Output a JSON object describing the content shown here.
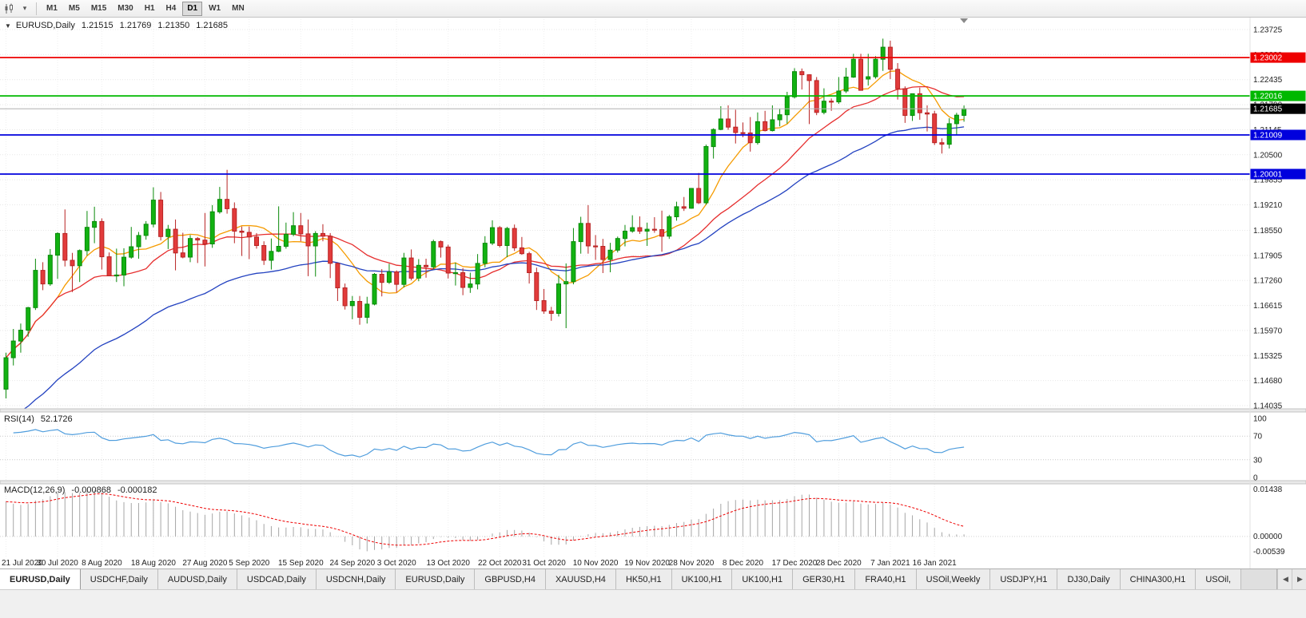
{
  "toolbar": {
    "timeframes": [
      {
        "label": "M1",
        "active": false
      },
      {
        "label": "M5",
        "active": false
      },
      {
        "label": "M15",
        "active": false
      },
      {
        "label": "M30",
        "active": false
      },
      {
        "label": "H1",
        "active": false
      },
      {
        "label": "H4",
        "active": false
      },
      {
        "label": "D1",
        "active": true
      },
      {
        "label": "W1",
        "active": false
      },
      {
        "label": "MN",
        "active": false
      }
    ],
    "icons": {
      "chart_type": "candlestick-chart",
      "dropdown": "▾"
    }
  },
  "chart_data": {
    "type": "candlestick",
    "symbol": "EURUSD",
    "timeframe": "Daily",
    "title": "EURUSD,Daily",
    "collapse_icon": "▼",
    "ohlc": {
      "open": "1.21515",
      "high": "1.21769",
      "low": "1.21350",
      "close": "1.21685"
    },
    "colors": {
      "bull": "#12b212",
      "bull_border": "#0a8a0a",
      "bear": "#e23b3b",
      "bear_border": "#b82424",
      "grid": "#e7e7e7",
      "axis_text": "#1f1f1f",
      "current_price_line": "#b0b0b0",
      "current_price_badge": "#000000"
    },
    "price_axis_ticks": [
      "1.23725",
      "1.23080",
      "1.22435",
      "1.21790",
      "1.21145",
      "1.20500",
      "1.19855",
      "1.19210",
      "1.18550",
      "1.17905",
      "1.17260",
      "1.16615",
      "1.15970",
      "1.15325",
      "1.14680",
      "1.14035"
    ],
    "levels": [
      {
        "price": 1.23002,
        "label": "1.23002",
        "color": "#ee0000"
      },
      {
        "price": 1.22016,
        "label": "1.22016",
        "color": "#00b800"
      },
      {
        "price": 1.21009,
        "label": "1.21009",
        "color": "#0000dd"
      },
      {
        "price": 1.20001,
        "label": "1.20001",
        "color": "#0000dd"
      }
    ],
    "current_price": {
      "value": 1.21685,
      "label": "1.21685"
    },
    "moving_averages": [
      {
        "name": "fast-ma",
        "period": 8,
        "method": "sma",
        "color": "#f59b00"
      },
      {
        "name": "medium-ma",
        "period": 20,
        "method": "sma",
        "color": "#e62e2e"
      },
      {
        "name": "slow-ma",
        "period": 40,
        "method": "ema",
        "seed": 1.136,
        "color": "#2342c0"
      }
    ],
    "date_labels": [
      [
        "21 Jul 2020",
        0
      ],
      [
        "30 Jul 2020",
        7
      ],
      [
        "8 Aug 2020",
        13
      ],
      [
        "18 Aug 2020",
        20
      ],
      [
        "27 Aug 2020",
        27
      ],
      [
        "5 Sep 2020",
        33
      ],
      [
        "15 Sep 2020",
        40
      ],
      [
        "24 Sep 2020",
        47
      ],
      [
        "3 Oct 2020",
        53
      ],
      [
        "13 Oct 2020",
        60
      ],
      [
        "22 Oct 2020",
        67
      ],
      [
        "31 Oct 2020",
        73
      ],
      [
        "10 Nov 2020",
        80
      ],
      [
        "19 Nov 2020",
        87
      ],
      [
        "28 Nov 2020",
        93
      ],
      [
        "8 Dec 2020",
        100
      ],
      [
        "17 Dec 2020",
        107
      ],
      [
        "28 Dec 2020",
        113
      ],
      [
        "7 Jan 2021",
        120
      ],
      [
        "16 Jan 2021",
        126
      ]
    ],
    "candles": [
      [
        1.1446,
        1.154,
        1.1422,
        1.1527
      ],
      [
        1.1527,
        1.1601,
        1.1507,
        1.157
      ],
      [
        1.157,
        1.1615,
        1.154,
        1.1598
      ],
      [
        1.1598,
        1.1658,
        1.1581,
        1.1656
      ],
      [
        1.1656,
        1.1782,
        1.165,
        1.1752
      ],
      [
        1.1752,
        1.1773,
        1.1701,
        1.1717
      ],
      [
        1.1717,
        1.1807,
        1.1712,
        1.1791
      ],
      [
        1.1791,
        1.185,
        1.173,
        1.1847
      ],
      [
        1.1847,
        1.1909,
        1.1762,
        1.1778
      ],
      [
        1.1778,
        1.1797,
        1.1696,
        1.1764
      ],
      [
        1.1764,
        1.1806,
        1.1722,
        1.1803
      ],
      [
        1.1803,
        1.1905,
        1.179,
        1.1863
      ],
      [
        1.1863,
        1.1916,
        1.1822,
        1.1878
      ],
      [
        1.1878,
        1.1886,
        1.1754,
        1.1787
      ],
      [
        1.1787,
        1.1798,
        1.1737,
        1.1738
      ],
      [
        1.1738,
        1.1808,
        1.1722,
        1.174
      ],
      [
        1.174,
        1.1809,
        1.1711,
        1.1786
      ],
      [
        1.1786,
        1.1864,
        1.1782,
        1.1813
      ],
      [
        1.1813,
        1.1851,
        1.1782,
        1.1842
      ],
      [
        1.1842,
        1.1879,
        1.1831,
        1.1871
      ],
      [
        1.1871,
        1.1966,
        1.1863,
        1.1933
      ],
      [
        1.1933,
        1.1954,
        1.1829,
        1.1839
      ],
      [
        1.1839,
        1.1869,
        1.1807,
        1.1858
      ],
      [
        1.1858,
        1.1883,
        1.1752,
        1.1797
      ],
      [
        1.1797,
        1.1849,
        1.1783,
        1.1786
      ],
      [
        1.1786,
        1.1843,
        1.1773,
        1.1834
      ],
      [
        1.1834,
        1.1838,
        1.1771,
        1.183
      ],
      [
        1.183,
        1.19,
        1.1762,
        1.182
      ],
      [
        1.182,
        1.192,
        1.181,
        1.1903
      ],
      [
        1.1903,
        1.1967,
        1.1898,
        1.1935
      ],
      [
        1.1935,
        1.2011,
        1.1898,
        1.1911
      ],
      [
        1.1911,
        1.1927,
        1.1822,
        1.1853
      ],
      [
        1.1853,
        1.1865,
        1.1789,
        1.185
      ],
      [
        1.185,
        1.1865,
        1.1781,
        1.1838
      ],
      [
        1.1838,
        1.1848,
        1.1808,
        1.1816
      ],
      [
        1.1816,
        1.1827,
        1.1766,
        1.1778
      ],
      [
        1.1778,
        1.1834,
        1.1754,
        1.1801
      ],
      [
        1.1801,
        1.1917,
        1.1799,
        1.1814
      ],
      [
        1.1814,
        1.1875,
        1.1808,
        1.1845
      ],
      [
        1.1845,
        1.1902,
        1.184,
        1.1867
      ],
      [
        1.1867,
        1.19,
        1.1827,
        1.1846
      ],
      [
        1.1846,
        1.1883,
        1.1737,
        1.1815
      ],
      [
        1.1815,
        1.1853,
        1.1736,
        1.1847
      ],
      [
        1.1847,
        1.1871,
        1.1827,
        1.184
      ],
      [
        1.184,
        1.1848,
        1.1732,
        1.177
      ],
      [
        1.177,
        1.1772,
        1.1673,
        1.1707
      ],
      [
        1.1707,
        1.1718,
        1.1651,
        1.1661
      ],
      [
        1.1661,
        1.1686,
        1.1626,
        1.1672
      ],
      [
        1.1672,
        1.1686,
        1.1612,
        1.1631
      ],
      [
        1.1631,
        1.1684,
        1.1615,
        1.1665
      ],
      [
        1.1665,
        1.1745,
        1.1662,
        1.1742
      ],
      [
        1.1742,
        1.1755,
        1.1685,
        1.1721
      ],
      [
        1.1721,
        1.1769,
        1.1717,
        1.1748
      ],
      [
        1.1748,
        1.1752,
        1.1695,
        1.1716
      ],
      [
        1.1716,
        1.1797,
        1.1708,
        1.1784
      ],
      [
        1.1784,
        1.1806,
        1.1726,
        1.1732
      ],
      [
        1.1732,
        1.1781,
        1.1724,
        1.1765
      ],
      [
        1.1765,
        1.1782,
        1.1733,
        1.1761
      ],
      [
        1.1761,
        1.1831,
        1.1755,
        1.1826
      ],
      [
        1.1826,
        1.1829,
        1.1785,
        1.1812
      ],
      [
        1.1812,
        1.1818,
        1.1731,
        1.1745
      ],
      [
        1.1745,
        1.1772,
        1.1713,
        1.1746
      ],
      [
        1.1746,
        1.1758,
        1.1688,
        1.1708
      ],
      [
        1.1708,
        1.1746,
        1.1694,
        1.1717
      ],
      [
        1.1717,
        1.1794,
        1.1703,
        1.177
      ],
      [
        1.177,
        1.184,
        1.176,
        1.1822
      ],
      [
        1.1822,
        1.1881,
        1.1817,
        1.1862
      ],
      [
        1.1862,
        1.1866,
        1.1811,
        1.1816
      ],
      [
        1.1816,
        1.1864,
        1.1786,
        1.186
      ],
      [
        1.186,
        1.187,
        1.1802,
        1.181
      ],
      [
        1.181,
        1.1838,
        1.1792,
        1.1795
      ],
      [
        1.1795,
        1.18,
        1.1718,
        1.1746
      ],
      [
        1.1746,
        1.1759,
        1.165,
        1.1674
      ],
      [
        1.1674,
        1.1704,
        1.164,
        1.1647
      ],
      [
        1.1647,
        1.1658,
        1.1622,
        1.1641
      ],
      [
        1.1641,
        1.174,
        1.1633,
        1.1717
      ],
      [
        1.1717,
        1.177,
        1.1603,
        1.1723
      ],
      [
        1.1723,
        1.1861,
        1.1716,
        1.1826
      ],
      [
        1.1826,
        1.189,
        1.1795,
        1.1873
      ],
      [
        1.1873,
        1.192,
        1.1795,
        1.1815
      ],
      [
        1.1815,
        1.1843,
        1.1779,
        1.1814
      ],
      [
        1.1814,
        1.1833,
        1.1745,
        1.178
      ],
      [
        1.178,
        1.1823,
        1.1747,
        1.1804
      ],
      [
        1.1804,
        1.1839,
        1.1798,
        1.1834
      ],
      [
        1.1834,
        1.1869,
        1.1814,
        1.1853
      ],
      [
        1.1853,
        1.1894,
        1.1849,
        1.1862
      ],
      [
        1.1862,
        1.1891,
        1.1846,
        1.1853
      ],
      [
        1.1853,
        1.1875,
        1.1815,
        1.1858
      ],
      [
        1.1858,
        1.1889,
        1.1849,
        1.1857
      ],
      [
        1.1857,
        1.1906,
        1.18,
        1.184
      ],
      [
        1.184,
        1.1895,
        1.1833,
        1.189
      ],
      [
        1.189,
        1.1929,
        1.188,
        1.1916
      ],
      [
        1.1916,
        1.1941,
        1.1905,
        1.1912
      ],
      [
        1.1912,
        1.1964,
        1.1911,
        1.1963
      ],
      [
        1.1963,
        1.2003,
        1.1923,
        1.1926
      ],
      [
        1.1926,
        1.2076,
        1.1921,
        1.2071
      ],
      [
        1.2071,
        1.2118,
        1.204,
        1.2115
      ],
      [
        1.2115,
        1.2175,
        1.2113,
        1.2142
      ],
      [
        1.2142,
        1.2177,
        1.2114,
        1.2121
      ],
      [
        1.2121,
        1.2166,
        1.2079,
        1.2107
      ],
      [
        1.2107,
        1.2133,
        1.2095,
        1.2106
      ],
      [
        1.2106,
        1.2147,
        1.2058,
        1.2081
      ],
      [
        1.2081,
        1.2159,
        1.2076,
        1.2135
      ],
      [
        1.2135,
        1.2163,
        1.211,
        1.2112
      ],
      [
        1.2112,
        1.2177,
        1.211,
        1.214
      ],
      [
        1.214,
        1.2169,
        1.2123,
        1.2153
      ],
      [
        1.2153,
        1.2212,
        1.213,
        1.2199
      ],
      [
        1.2199,
        1.2273,
        1.2195,
        1.2264
      ],
      [
        1.2264,
        1.2272,
        1.2218,
        1.2256
      ],
      [
        1.2256,
        1.2257,
        1.2129,
        1.2241
      ],
      [
        1.2241,
        1.225,
        1.2152,
        1.2159
      ],
      [
        1.2159,
        1.2221,
        1.2154,
        1.2188
      ],
      [
        1.2188,
        1.2195,
        1.2163,
        1.2186
      ],
      [
        1.2186,
        1.225,
        1.2181,
        1.2214
      ],
      [
        1.2214,
        1.2274,
        1.2209,
        1.225
      ],
      [
        1.225,
        1.231,
        1.2248,
        1.2296
      ],
      [
        1.2296,
        1.231,
        1.2215,
        1.2216
      ],
      [
        1.2245,
        1.231,
        1.2228,
        1.2251
      ],
      [
        1.2251,
        1.2304,
        1.2246,
        1.2296
      ],
      [
        1.2296,
        1.2349,
        1.2266,
        1.2327
      ],
      [
        1.2327,
        1.2344,
        1.2245,
        1.227
      ],
      [
        1.227,
        1.2286,
        1.2192,
        1.222
      ],
      [
        1.222,
        1.2226,
        1.2132,
        1.2151
      ],
      [
        1.2151,
        1.2208,
        1.2137,
        1.2207
      ],
      [
        1.2207,
        1.2223,
        1.214,
        1.2158
      ],
      [
        1.2158,
        1.2177,
        1.211,
        1.2155
      ],
      [
        1.2155,
        1.2163,
        1.2075,
        1.2081
      ],
      [
        1.2081,
        1.2092,
        1.2053,
        1.2077
      ],
      [
        1.2077,
        1.2144,
        1.2066,
        1.213
      ],
      [
        1.213,
        1.2158,
        1.2101,
        1.2152
      ],
      [
        1.21515,
        1.21769,
        1.2135,
        1.21685
      ]
    ],
    "indicators": {
      "rsi": {
        "name": "RSI(14)",
        "period": 14,
        "value": "52.1726",
        "color": "#4f9ddd",
        "scale_labels": [
          "100",
          "70",
          "30",
          "0"
        ],
        "levels": [
          70,
          30
        ]
      },
      "macd": {
        "name": "MACD(12,26,9)",
        "fast": 12,
        "slow": 26,
        "signal": 9,
        "macd_value": "-0.000868",
        "signal_value": "-0.000182",
        "scale_labels": [
          "0.01438",
          "0.00000",
          "-0.00539"
        ],
        "histogram_color": "#a6a6a6",
        "signal_color": "#ee0000"
      }
    }
  },
  "tabs": {
    "scroll_left": "◀",
    "scroll_right": "▶",
    "items": [
      {
        "label": "EURUSD,Daily",
        "active": true
      },
      {
        "label": "USDCHF,Daily",
        "active": false
      },
      {
        "label": "AUDUSD,Daily",
        "active": false
      },
      {
        "label": "USDCAD,Daily",
        "active": false
      },
      {
        "label": "USDCNH,Daily",
        "active": false
      },
      {
        "label": "EURUSD,Daily",
        "active": false
      },
      {
        "label": "GBPUSD,H4",
        "active": false
      },
      {
        "label": "XAUUSD,H4",
        "active": false
      },
      {
        "label": "HK50,H1",
        "active": false
      },
      {
        "label": "UK100,H1",
        "active": false
      },
      {
        "label": "UK100,H1",
        "active": false
      },
      {
        "label": "GER30,H1",
        "active": false
      },
      {
        "label": "FRA40,H1",
        "active": false
      },
      {
        "label": "USOil,Weekly",
        "active": false
      },
      {
        "label": "USDJPY,H1",
        "active": false
      },
      {
        "label": "DJ30,Daily",
        "active": false
      },
      {
        "label": "CHINA300,H1",
        "active": false
      },
      {
        "label": "USOil,",
        "active": false
      }
    ]
  }
}
